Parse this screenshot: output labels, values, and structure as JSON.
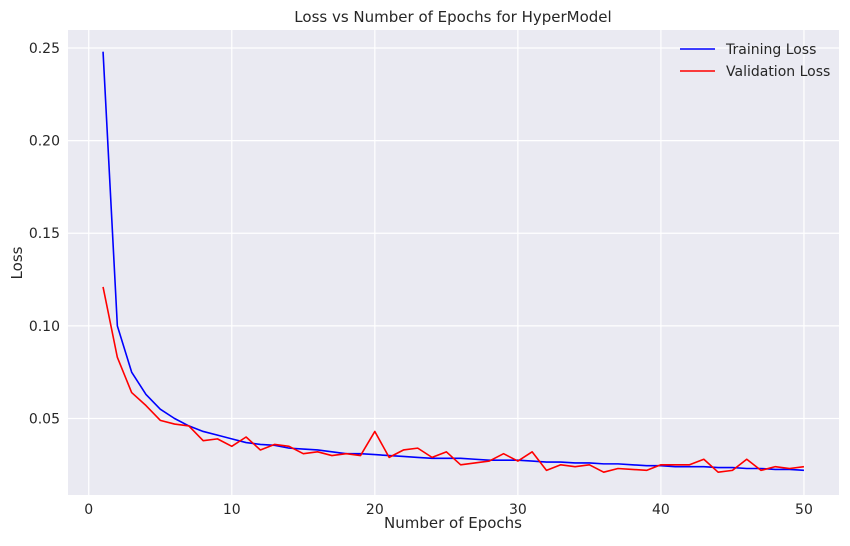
{
  "chart_data": {
    "type": "line",
    "title": "Loss vs Number of Epochs for HyperModel",
    "xlabel": "Number of Epochs",
    "ylabel": "Loss",
    "xlim": [
      -1.45,
      52.45
    ],
    "ylim": [
      0.0087,
      0.2597
    ],
    "xticks": [
      0,
      10,
      20,
      30,
      40,
      50
    ],
    "xtick_labels": [
      "0",
      "10",
      "20",
      "30",
      "40",
      "50"
    ],
    "yticks": [
      0.05,
      0.1,
      0.15,
      0.2,
      0.25
    ],
    "ytick_labels": [
      "0.05",
      "0.10",
      "0.15",
      "0.20",
      "0.25"
    ],
    "grid": true,
    "background": "#eaeaf2",
    "legend_position": "top-right",
    "x": [
      1,
      2,
      3,
      4,
      5,
      6,
      7,
      8,
      9,
      10,
      11,
      12,
      13,
      14,
      15,
      16,
      17,
      18,
      19,
      20,
      21,
      22,
      23,
      24,
      25,
      26,
      27,
      28,
      29,
      30,
      31,
      32,
      33,
      34,
      35,
      36,
      37,
      38,
      39,
      40,
      41,
      42,
      43,
      44,
      45,
      46,
      47,
      48,
      49,
      50
    ],
    "series": [
      {
        "name": "Training Loss",
        "color": "#0000ff",
        "values": [
          0.248,
          0.1,
          0.075,
          0.063,
          0.055,
          0.05,
          0.046,
          0.043,
          0.041,
          0.039,
          0.037,
          0.036,
          0.0355,
          0.034,
          0.0335,
          0.033,
          0.032,
          0.031,
          0.031,
          0.0305,
          0.03,
          0.0295,
          0.029,
          0.0285,
          0.0285,
          0.0285,
          0.028,
          0.0275,
          0.0275,
          0.0275,
          0.027,
          0.0265,
          0.0265,
          0.026,
          0.026,
          0.0255,
          0.0255,
          0.025,
          0.0245,
          0.0245,
          0.024,
          0.024,
          0.024,
          0.0235,
          0.0235,
          0.023,
          0.023,
          0.0225,
          0.0225,
          0.022
        ]
      },
      {
        "name": "Validation Loss",
        "color": "#ff0000",
        "values": [
          0.121,
          0.083,
          0.064,
          0.057,
          0.049,
          0.047,
          0.046,
          0.038,
          0.039,
          0.035,
          0.04,
          0.033,
          0.036,
          0.035,
          0.031,
          0.032,
          0.03,
          0.031,
          0.03,
          0.043,
          0.029,
          0.033,
          0.034,
          0.029,
          0.032,
          0.025,
          0.026,
          0.027,
          0.031,
          0.027,
          0.032,
          0.022,
          0.025,
          0.024,
          0.025,
          0.021,
          0.023,
          0.0225,
          0.022,
          0.025,
          0.025,
          0.025,
          0.028,
          0.021,
          0.022,
          0.028,
          0.022,
          0.024,
          0.023,
          0.024
        ]
      }
    ]
  }
}
